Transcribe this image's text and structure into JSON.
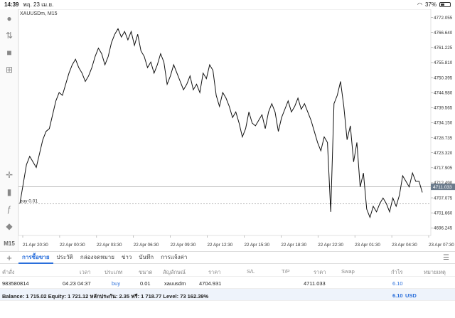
{
  "status": {
    "time": "14:39",
    "date": "พฤ. 23 เม.ย.",
    "battery": "37%",
    "battery_level": 0.37
  },
  "chart": {
    "symbol_label": "XAUUSDm, M15",
    "price_labels": [
      "4772.055",
      "4766.640",
      "4761.225",
      "4755.810",
      "4750.395",
      "4744.980",
      "4739.565",
      "4734.150",
      "4728.735",
      "4723.320",
      "4717.905",
      "4712.490",
      "4707.075",
      "4701.660",
      "4696.245"
    ],
    "current_price": "4711.033",
    "order_label": "buy 0.01",
    "time_labels": [
      "21 Apr 20:30",
      "22 Apr 00:30",
      "22 Apr 03:30",
      "22 Apr 06:30",
      "22 Apr 09:30",
      "22 Apr 12:30",
      "22 Apr 15:30",
      "22 Apr 18:30",
      "22 Apr 22:30",
      "23 Apr 01:30",
      "23 Apr 04:30",
      "23 Apr 07:30"
    ]
  },
  "chart_data": {
    "type": "line",
    "ylim": [
      4693.5,
      4774.5
    ],
    "current_price": 4711.033,
    "order_price": 4704.931,
    "values": [
      4705,
      4712,
      4719,
      4722,
      4720,
      4718,
      4723,
      4728,
      4731,
      4732,
      4737,
      4742,
      4745,
      4744,
      4748,
      4752,
      4755,
      4757,
      4754,
      4752,
      4749,
      4751,
      4754,
      4758,
      4761,
      4759,
      4755,
      4758,
      4763,
      4766,
      4768,
      4765,
      4767,
      4764,
      4767,
      4762,
      4766,
      4760,
      4758,
      4754,
      4756,
      4752,
      4755,
      4759,
      4756,
      4748,
      4751,
      4755,
      4752,
      4749,
      4746,
      4748,
      4751,
      4746,
      4748,
      4745,
      4752,
      4750,
      4755,
      4753,
      4744,
      4740,
      4745,
      4743,
      4740,
      4736,
      4738,
      4734,
      4729,
      4732,
      4738,
      4734,
      4733,
      4735,
      4737,
      4732,
      4738,
      4741,
      4738,
      4731,
      4736,
      4739,
      4742,
      4738,
      4740,
      4743,
      4739,
      4741,
      4738,
      4735,
      4731,
      4727,
      4724,
      4729,
      4727,
      4702,
      4741,
      4744,
      4749,
      4740,
      4728,
      4733,
      4720,
      4727,
      4711,
      4716,
      4703,
      4700,
      4704,
      4702,
      4705,
      4707,
      4705,
      4702,
      4707,
      4704,
      4708,
      4715,
      4713,
      4711,
      4716,
      4713,
      4713,
      4709
    ]
  },
  "tabs": [
    "การซื้อขาย",
    "ประวัติ",
    "กล่องจดหมาย",
    "ข่าว",
    "บันทึก",
    "การแจ้งค่า"
  ],
  "table": {
    "headers": [
      "คำสั่ง",
      "เวลา",
      "ประเภท",
      "ขนาด",
      "สัญลักษณ์",
      "ราคา",
      "S/L",
      "T/P",
      "ราคา",
      "Swap",
      "กำไร",
      "หมายเหตุ"
    ],
    "row": {
      "order": "983580814",
      "time": "04.23 04:37",
      "type": "buy",
      "size": "0.01",
      "symbol": "xauusdm",
      "price": "4704.931",
      "sl": "",
      "tp": "",
      "current": "4711.033",
      "swap": "",
      "profit": "6.10",
      "note": ""
    },
    "balance": {
      "summary": "Balance: 1 715.02 Equity: 1 721.12 หลักประกัน: 2.35 ฟรี: 1 718.77 Level: 73 162.39%",
      "profit": "6.10",
      "currency": "USD"
    }
  }
}
